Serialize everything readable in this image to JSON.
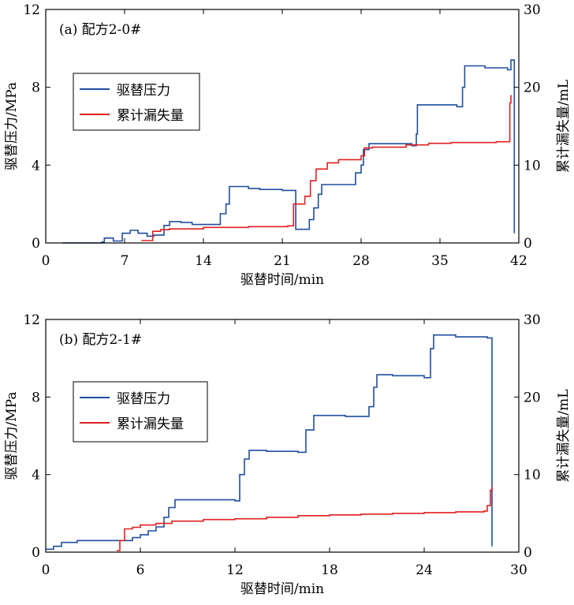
{
  "chart_data": [
    {
      "type": "line",
      "panel_label": "(a) 配方2-0#",
      "xlabel": "驱替时间/min",
      "ylabel": "驱替压力/MPa",
      "y2label": "累计漏失量/mL",
      "xlim": [
        0,
        42
      ],
      "ylim": [
        0,
        12
      ],
      "y2lim": [
        0,
        30
      ],
      "xticks": [
        "0",
        "7",
        "14",
        "21",
        "28",
        "35",
        "42"
      ],
      "yticks": [
        "0",
        "4",
        "8",
        "12"
      ],
      "y2ticks": [
        "0",
        "10",
        "20",
        "30"
      ],
      "legend_position": "upper-left",
      "series": [
        {
          "name": "驱替压力",
          "axis": "left",
          "color": "#1f4e9e",
          "points": [
            [
              1.5,
              0.0
            ],
            [
              5,
              0.05
            ],
            [
              5.2,
              0.25
            ],
            [
              6,
              0.1
            ],
            [
              6.8,
              0.5
            ],
            [
              7.5,
              0.65
            ],
            [
              8.2,
              0.5
            ],
            [
              9,
              0.35
            ],
            [
              9.6,
              0.4
            ],
            [
              10.5,
              0.9
            ],
            [
              11,
              1.1
            ],
            [
              12,
              1.05
            ],
            [
              13,
              0.95
            ],
            [
              15,
              0.95
            ],
            [
              15.5,
              1.5
            ],
            [
              16,
              2.0
            ],
            [
              16.3,
              2.9
            ],
            [
              18,
              2.8
            ],
            [
              19,
              2.75
            ],
            [
              21,
              2.7
            ],
            [
              22,
              2.7
            ],
            [
              22.2,
              0.7
            ],
            [
              23,
              0.7
            ],
            [
              23.4,
              1.2
            ],
            [
              23.8,
              1.8
            ],
            [
              24.2,
              2.5
            ],
            [
              24.5,
              3.0
            ],
            [
              27,
              3.0
            ],
            [
              27.5,
              3.6
            ],
            [
              28,
              4.0
            ],
            [
              28.2,
              4.8
            ],
            [
              28.7,
              5.1
            ],
            [
              30,
              5.1
            ],
            [
              32.5,
              5.0
            ],
            [
              32.9,
              5.6
            ],
            [
              33,
              7.1
            ],
            [
              35,
              7.1
            ],
            [
              36.5,
              7.0
            ],
            [
              37,
              8.0
            ],
            [
              37.2,
              9.1
            ],
            [
              38,
              9.1
            ],
            [
              39,
              9.0
            ],
            [
              40,
              9.0
            ],
            [
              41,
              8.9
            ],
            [
              41.3,
              9.4
            ],
            [
              41.6,
              9.4
            ],
            [
              41.6,
              0.5
            ]
          ]
        },
        {
          "name": "累计漏失量",
          "axis": "right",
          "color": "#e02020",
          "points": [
            [
              8.5,
              0.3
            ],
            [
              9.5,
              1.5
            ],
            [
              10.2,
              1.7
            ],
            [
              11,
              1.8
            ],
            [
              14,
              2.0
            ],
            [
              18,
              2.1
            ],
            [
              21.5,
              2.2
            ],
            [
              22,
              5.0
            ],
            [
              23,
              6.0
            ],
            [
              23.5,
              8.0
            ],
            [
              24,
              9.5
            ],
            [
              25,
              10.3
            ],
            [
              26,
              10.7
            ],
            [
              28,
              11.2
            ],
            [
              28.3,
              12.2
            ],
            [
              29,
              12.3
            ],
            [
              32,
              12.6
            ],
            [
              34,
              12.8
            ],
            [
              36,
              12.9
            ],
            [
              38,
              12.9
            ],
            [
              40,
              13.0
            ],
            [
              41,
              13.0
            ],
            [
              41.2,
              18.0
            ],
            [
              41.3,
              19.0
            ]
          ]
        }
      ]
    },
    {
      "type": "line",
      "panel_label": "(b) 配方2-1#",
      "xlabel": "驱替时间/min",
      "ylabel": "驱替压力/MPa",
      "y2label": "累计漏失量/mL",
      "xlim": [
        0,
        30
      ],
      "ylim": [
        0,
        12
      ],
      "y2lim": [
        0,
        30
      ],
      "xticks": [
        "0",
        "6",
        "12",
        "18",
        "24",
        "30"
      ],
      "yticks": [
        "0",
        "4",
        "8",
        "12"
      ],
      "y2ticks": [
        "0",
        "10",
        "20",
        "30"
      ],
      "legend_position": "upper-left",
      "series": [
        {
          "name": "驱替压力",
          "axis": "left",
          "color": "#1f4e9e",
          "points": [
            [
              0,
              0.15
            ],
            [
              0.5,
              0.3
            ],
            [
              1,
              0.5
            ],
            [
              2,
              0.6
            ],
            [
              4.5,
              0.6
            ],
            [
              5,
              0.6
            ],
            [
              5.5,
              0.75
            ],
            [
              6,
              0.9
            ],
            [
              6.5,
              1.1
            ],
            [
              7,
              1.3
            ],
            [
              7.5,
              1.8
            ],
            [
              7.8,
              2.3
            ],
            [
              8.2,
              2.7
            ],
            [
              10,
              2.7
            ],
            [
              12,
              2.65
            ],
            [
              12.3,
              4.0
            ],
            [
              12.6,
              4.8
            ],
            [
              12.9,
              5.25
            ],
            [
              14,
              5.2
            ],
            [
              16,
              5.15
            ],
            [
              16.5,
              6.3
            ],
            [
              17,
              7.05
            ],
            [
              18,
              7.05
            ],
            [
              19,
              7.0
            ],
            [
              20,
              7.0
            ],
            [
              20.5,
              7.5
            ],
            [
              20.8,
              8.5
            ],
            [
              21,
              9.15
            ],
            [
              22,
              9.1
            ],
            [
              24,
              9.0
            ],
            [
              24.4,
              10.5
            ],
            [
              24.6,
              11.2
            ],
            [
              26,
              11.1
            ],
            [
              28,
              11.05
            ],
            [
              28.2,
              11.05
            ],
            [
              28.3,
              5.0
            ],
            [
              28.3,
              0.3
            ]
          ]
        },
        {
          "name": "累计漏失量",
          "axis": "right",
          "color": "#e02020",
          "points": [
            [
              4.5,
              0.2
            ],
            [
              4.7,
              1.5
            ],
            [
              5,
              3.0
            ],
            [
              5.5,
              3.2
            ],
            [
              6,
              3.5
            ],
            [
              7,
              3.7
            ],
            [
              8,
              4.0
            ],
            [
              10,
              4.2
            ],
            [
              12,
              4.3
            ],
            [
              14,
              4.5
            ],
            [
              16,
              4.7
            ],
            [
              18,
              4.8
            ],
            [
              20,
              4.9
            ],
            [
              22,
              5.0
            ],
            [
              24,
              5.1
            ],
            [
              26,
              5.2
            ],
            [
              27.8,
              5.3
            ],
            [
              28,
              6.0
            ],
            [
              28.2,
              8.0
            ],
            [
              28.3,
              8.3
            ]
          ]
        }
      ]
    }
  ]
}
